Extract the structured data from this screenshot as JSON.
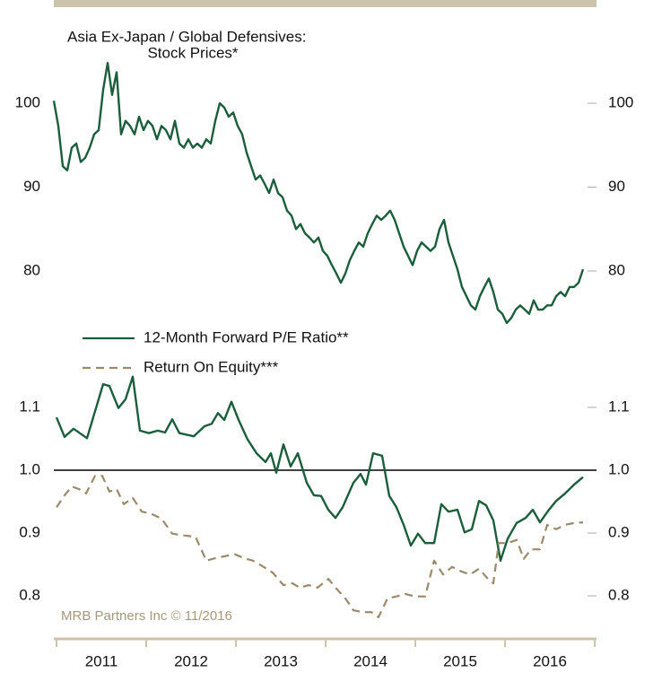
{
  "chart_data": [
    {
      "type": "line",
      "title": "Asia Ex-Japan / Global Defensives:",
      "subtitle": "Stock Prices*",
      "xlim": [
        2010.97,
        2017.0
      ],
      "ylim": [
        70,
        106
      ],
      "yticks": [
        80,
        90,
        100
      ],
      "x": [
        2010.97,
        2011.02,
        2011.07,
        2011.12,
        2011.17,
        2011.22,
        2011.27,
        2011.32,
        2011.37,
        2011.42,
        2011.47,
        2011.52,
        2011.57,
        2011.62,
        2011.67,
        2011.72,
        2011.77,
        2011.82,
        2011.87,
        2011.92,
        2011.97,
        2012.02,
        2012.07,
        2012.12,
        2012.17,
        2012.22,
        2012.27,
        2012.32,
        2012.37,
        2012.42,
        2012.47,
        2012.52,
        2012.57,
        2012.62,
        2012.67,
        2012.72,
        2012.77,
        2012.82,
        2012.87,
        2012.92,
        2012.97,
        2013.02,
        2013.07,
        2013.12,
        2013.17,
        2013.22,
        2013.27,
        2013.32,
        2013.37,
        2013.42,
        2013.47,
        2013.52,
        2013.57,
        2013.62,
        2013.67,
        2013.72,
        2013.77,
        2013.82,
        2013.87,
        2013.92,
        2013.97,
        2014.02,
        2014.07,
        2014.12,
        2014.17,
        2014.22,
        2014.27,
        2014.32,
        2014.37,
        2014.42,
        2014.47,
        2014.52,
        2014.57,
        2014.62,
        2014.67,
        2014.72,
        2014.77,
        2014.82,
        2014.87,
        2014.92,
        2014.97,
        2015.02,
        2015.07,
        2015.12,
        2015.17,
        2015.22,
        2015.27,
        2015.32,
        2015.37,
        2015.42,
        2015.47,
        2015.52,
        2015.57,
        2015.62,
        2015.67,
        2015.72,
        2015.77,
        2015.82,
        2015.87,
        2015.92,
        2015.97,
        2016.02,
        2016.07,
        2016.12,
        2016.17,
        2016.22,
        2016.27,
        2016.32,
        2016.37,
        2016.42,
        2016.47,
        2016.52,
        2016.57,
        2016.62,
        2016.67,
        2016.72,
        2016.77,
        2016.82,
        2016.87
      ],
      "series": [
        {
          "color": "#1b5e3b",
          "values": [
            100.3,
            97.3,
            92.5,
            92,
            94.7,
            95.2,
            93,
            93.5,
            94.7,
            96.3,
            96.8,
            101.6,
            104.8,
            101.0,
            103.7,
            96.3,
            97.9,
            97.3,
            96.3,
            98.4,
            96.8,
            97.9,
            97.3,
            95.7,
            97.3,
            96.8,
            95.7,
            97.9,
            95.2,
            94.7,
            95.7,
            94.7,
            95.2,
            94.7,
            95.7,
            95.2,
            97.9,
            100,
            99.5,
            98.4,
            98.9,
            97.3,
            96.3,
            94.1,
            92.5,
            90.9,
            91.4,
            90.4,
            89.3,
            90.9,
            89.3,
            88.8,
            87.2,
            86.6,
            85,
            85.6,
            84.5,
            84,
            83.4,
            84,
            82.4,
            81.8,
            80.7,
            79.7,
            78.6,
            79.7,
            81.3,
            82.4,
            83.4,
            82.9,
            84.5,
            85.6,
            86.6,
            86.1,
            86.6,
            87.2,
            86.1,
            84.5,
            82.9,
            81.8,
            80.7,
            82.4,
            83.4,
            82.9,
            82.4,
            82.9,
            85,
            86.1,
            83.4,
            81.8,
            80.2,
            78.1,
            77,
            75.9,
            75.4,
            77,
            78.1,
            79.1,
            77.5,
            75.4,
            74.9,
            73.8,
            74.4,
            75.4,
            75.9,
            75.4,
            74.9,
            76.5,
            75.4,
            75.4,
            75.9,
            75.9,
            77,
            77.5,
            77,
            78.1,
            78.1,
            78.6,
            80.2
          ]
        }
      ]
    },
    {
      "type": "line",
      "xlim": [
        2010.97,
        2017.0
      ],
      "ylim": [
        0.75,
        1.16
      ],
      "yticks": [
        0.8,
        0.9,
        {
          "value": 1,
          "label": "1.0"
        },
        1.1
      ],
      "reference_line": 1,
      "xticks": [
        {
          "value": 2011.5,
          "label": "2011"
        },
        {
          "value": 2012.5,
          "label": "2012"
        },
        {
          "value": 2013.5,
          "label": "2013"
        },
        {
          "value": 2014.5,
          "label": "2014"
        },
        {
          "value": 2015.5,
          "label": "2015"
        },
        {
          "value": 2016.5,
          "label": "2016"
        }
      ],
      "xtick_marks": [
        2011,
        2012,
        2013,
        2014,
        2015,
        2016,
        2017
      ],
      "source": "MRB Partners Inc © 11/2016",
      "series": [
        {
          "name": "12-Month Forward P/E Ratio**",
          "color": "#1b5e3b",
          "dashed": false,
          "x": [
            2011.0,
            2011.09,
            2011.19,
            2011.34,
            2011.52,
            2011.59,
            2011.69,
            2011.77,
            2011.85,
            2011.93,
            2012.03,
            2012.13,
            2012.21,
            2012.29,
            2012.37,
            2012.53,
            2012.65,
            2012.73,
            2012.8,
            2012.87,
            2012.95,
            2013.03,
            2013.13,
            2013.23,
            2013.33,
            2013.39,
            2013.45,
            2013.53,
            2013.61,
            2013.69,
            2013.79,
            2013.87,
            2013.95,
            2014.03,
            2014.11,
            2014.19,
            2014.31,
            2014.39,
            2014.45,
            2014.53,
            2014.63,
            2014.71,
            2014.79,
            2014.87,
            2014.95,
            2015.03,
            2015.11,
            2015.21,
            2015.29,
            2015.37,
            2015.47,
            2015.55,
            2015.63,
            2015.71,
            2015.79,
            2015.87,
            2015.95,
            2016.03,
            2016.13,
            2016.23,
            2016.31,
            2016.39,
            2016.49,
            2016.57,
            2016.67,
            2016.77,
            2016.87
          ],
          "values": [
            1.084,
            1.053,
            1.066,
            1.051,
            1.137,
            1.134,
            1.099,
            1.113,
            1.149,
            1.063,
            1.059,
            1.063,
            1.06,
            1.081,
            1.059,
            1.054,
            1.07,
            1.074,
            1.091,
            1.08,
            1.109,
            1.08,
            1.049,
            1.027,
            1.013,
            1.027,
            0.996,
            1.041,
            1.006,
            1.027,
            0.98,
            0.96,
            0.959,
            0.937,
            0.924,
            0.941,
            0.98,
            0.994,
            0.977,
            1.027,
            1.023,
            0.959,
            0.941,
            0.913,
            0.88,
            0.899,
            0.884,
            0.884,
            0.946,
            0.934,
            0.937,
            0.901,
            0.906,
            0.951,
            0.944,
            0.92,
            0.856,
            0.891,
            0.916,
            0.924,
            0.937,
            0.917,
            0.937,
            0.951,
            0.963,
            0.977,
            0.989
          ]
        },
        {
          "name": "Return On Equity***",
          "color": "#9a8a6a",
          "dashed": true,
          "x": [
            2011.0,
            2011.09,
            2011.17,
            2011.25,
            2011.33,
            2011.43,
            2011.51,
            2011.59,
            2011.67,
            2011.75,
            2011.85,
            2011.95,
            2012.05,
            2012.17,
            2012.29,
            2012.43,
            2012.55,
            2012.67,
            2012.77,
            2012.87,
            2012.99,
            2013.09,
            2013.19,
            2013.31,
            2013.41,
            2013.53,
            2013.63,
            2013.71,
            2013.81,
            2013.91,
            2014.03,
            2014.13,
            2014.23,
            2014.31,
            2014.41,
            2014.51,
            2014.59,
            2014.69,
            2014.79,
            2014.89,
            2014.99,
            2015.11,
            2015.21,
            2015.31,
            2015.41,
            2015.51,
            2015.61,
            2015.71,
            2015.81,
            2015.87,
            2015.93,
            2016.03,
            2016.13,
            2016.21,
            2016.29,
            2016.39,
            2016.47,
            2016.57,
            2016.67,
            2016.77,
            2016.87
          ],
          "values": [
            0.941,
            0.96,
            0.974,
            0.97,
            0.963,
            0.991,
            0.991,
            0.966,
            0.97,
            0.946,
            0.956,
            0.934,
            0.931,
            0.923,
            0.899,
            0.896,
            0.894,
            0.856,
            0.86,
            0.863,
            0.866,
            0.86,
            0.856,
            0.846,
            0.837,
            0.817,
            0.82,
            0.813,
            0.817,
            0.813,
            0.827,
            0.81,
            0.794,
            0.777,
            0.774,
            0.774,
            0.766,
            0.796,
            0.799,
            0.803,
            0.799,
            0.799,
            0.856,
            0.834,
            0.846,
            0.839,
            0.834,
            0.843,
            0.827,
            0.82,
            0.884,
            0.884,
            0.889,
            0.859,
            0.874,
            0.874,
            0.913,
            0.906,
            0.913,
            0.916,
            0.917
          ]
        }
      ]
    }
  ]
}
